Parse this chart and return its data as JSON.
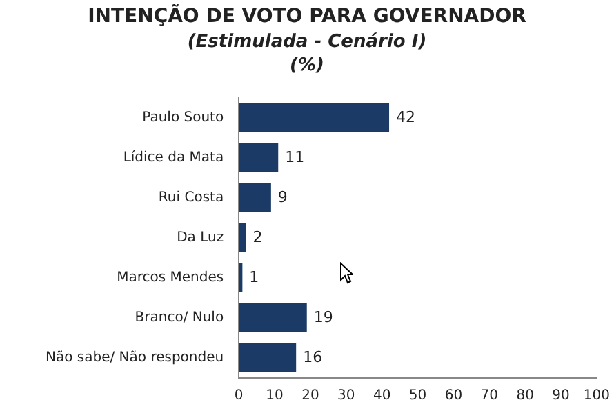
{
  "chart_data": {
    "type": "bar",
    "orientation": "horizontal",
    "title": "INTENÇÃO DE VOTO PARA GOVERNADOR",
    "subtitle": "(Estimulada - Cenário I)\n(%)",
    "categories": [
      "Paulo Souto",
      "Lídice da Mata",
      "Rui Costa",
      "Da Luz",
      "Marcos Mendes",
      "Branco/ Nulo",
      "Não sabe/ Não respondeu"
    ],
    "values": [
      42,
      11,
      9,
      2,
      1,
      19,
      16
    ],
    "color": "#1b3a66",
    "data_labels": true,
    "grid": false,
    "legend": false,
    "xlim": [
      0,
      100
    ],
    "xticks": [
      0,
      10,
      20,
      30,
      40,
      50,
      60,
      70,
      80,
      90,
      100
    ]
  }
}
